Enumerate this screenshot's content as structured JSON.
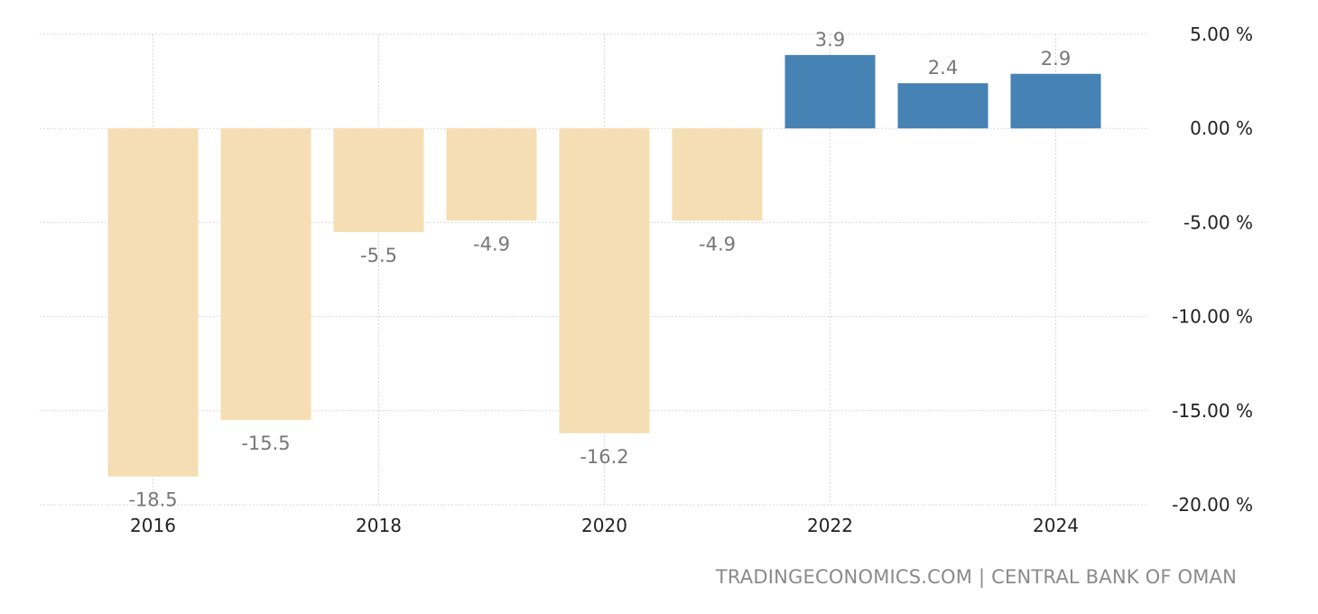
{
  "chart_data": {
    "type": "bar",
    "categories": [
      "2016",
      "2017",
      "2018",
      "2019",
      "2020",
      "2021",
      "2022",
      "2023",
      "2024"
    ],
    "values": [
      -18.5,
      -15.5,
      -5.5,
      -4.9,
      -16.2,
      -4.9,
      3.9,
      2.4,
      2.9
    ],
    "value_labels": [
      "-18.5",
      "-15.5",
      "-5.5",
      "-4.9",
      "-16.2",
      "-4.9",
      "3.9",
      "2.4",
      "2.9"
    ],
    "x_tick_labels": [
      "2016",
      "2018",
      "2020",
      "2022",
      "2024"
    ],
    "y_ticks": [
      5,
      0,
      -5,
      -10,
      -15,
      -20
    ],
    "y_tick_labels": [
      "5.00 %",
      "0.00 %",
      "-5.00 %",
      "-10.00 %",
      "-15.00 %",
      "-20.00 %"
    ],
    "ylim": [
      -20,
      5
    ],
    "y_axis_position": "right",
    "grid": true,
    "colors": {
      "positive": "#4682b4",
      "negative": "#f5deb3"
    },
    "title": "",
    "xlabel": "",
    "ylabel": ""
  },
  "source_text": "TRADINGECONOMICS.COM | CENTRAL BANK OF OMAN"
}
